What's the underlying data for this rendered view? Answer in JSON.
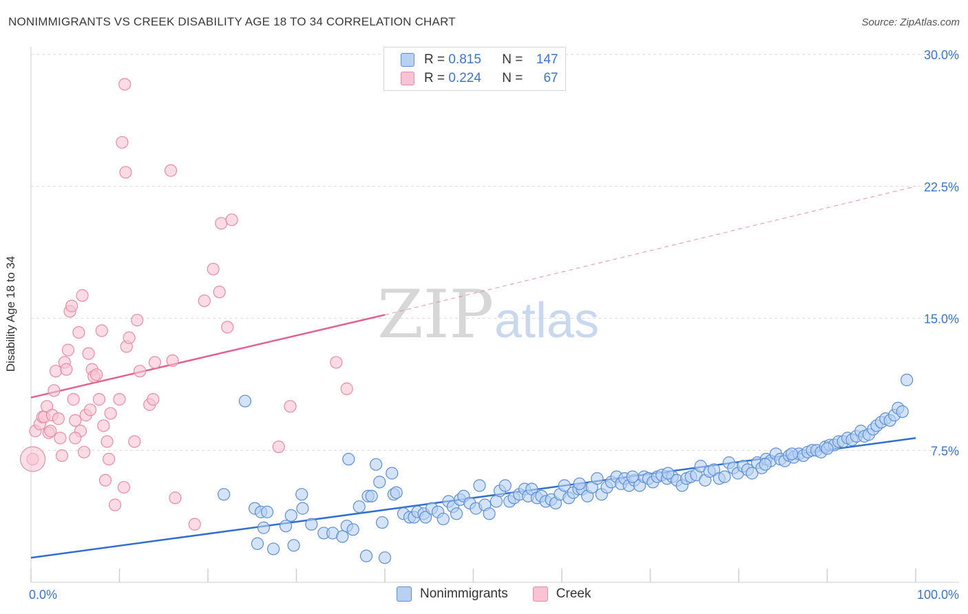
{
  "title": "NONIMMIGRANTS VS CREEK DISABILITY AGE 18 TO 34 CORRELATION CHART",
  "source": "Source: ZipAtlas.com",
  "watermark": {
    "zip": "ZIP",
    "atlas": "atlas"
  },
  "legend_top": [
    {
      "r_label": "R =",
      "r_value": "0.815",
      "n_label": "N =",
      "n_value": "147"
    },
    {
      "r_label": "R =",
      "r_value": "0.224",
      "n_label": "N =",
      "n_value": "67"
    }
  ],
  "colors": {
    "blue_fill": "#b8d0f2",
    "blue_stroke": "#5b8fd6",
    "blue_line": "#2f6fd0",
    "pink_fill": "#f8c4d3",
    "pink_stroke": "#ea8aa6",
    "pink_line": "#e3628d",
    "tick_text": "#3b74c9",
    "grid": "#d9d9d9"
  },
  "chart_data": {
    "type": "scatter",
    "xlabel": "",
    "ylabel": "Disability Age 18 to 34",
    "xlim": [
      0,
      100
    ],
    "ylim": [
      0,
      30
    ],
    "x_tick_labels": [
      "0.0%",
      "100.0%"
    ],
    "y_ticks": [
      7.5,
      15.0,
      22.5,
      30.0
    ],
    "y_tick_labels": [
      "7.5%",
      "15.0%",
      "22.5%",
      "30.0%"
    ],
    "grid": "horizontal dashed",
    "legend_position": "bottom-center",
    "series": [
      {
        "name": "Nonimmigrants",
        "color": "#5b8fd6",
        "trend": {
          "x": [
            0,
            100
          ],
          "y": [
            1.4,
            8.2
          ],
          "extended_to": null
        },
        "points": [
          [
            21.8,
            5.0
          ],
          [
            24.2,
            10.3
          ],
          [
            25.3,
            4.2
          ],
          [
            25.6,
            2.2
          ],
          [
            26.0,
            4.0
          ],
          [
            26.3,
            3.1
          ],
          [
            26.7,
            4.0
          ],
          [
            27.4,
            1.9
          ],
          [
            28.8,
            3.2
          ],
          [
            29.4,
            3.8
          ],
          [
            29.7,
            2.1
          ],
          [
            30.6,
            5.0
          ],
          [
            30.7,
            4.2
          ],
          [
            31.7,
            3.3
          ],
          [
            33.1,
            2.8
          ],
          [
            34.1,
            2.8
          ],
          [
            35.2,
            2.6
          ],
          [
            35.7,
            3.2
          ],
          [
            36.4,
            3.0
          ],
          [
            35.9,
            7.0
          ],
          [
            37.1,
            4.3
          ],
          [
            37.9,
            1.5
          ],
          [
            38.1,
            4.9
          ],
          [
            38.5,
            4.9
          ],
          [
            39.0,
            6.7
          ],
          [
            39.4,
            5.7
          ],
          [
            39.7,
            3.4
          ],
          [
            40.0,
            1.4
          ],
          [
            40.8,
            6.2
          ],
          [
            41.0,
            5.0
          ],
          [
            41.3,
            5.1
          ],
          [
            42.1,
            3.9
          ],
          [
            42.8,
            3.7
          ],
          [
            43.3,
            3.7
          ],
          [
            43.7,
            4.0
          ],
          [
            44.4,
            3.9
          ],
          [
            44.6,
            3.7
          ],
          [
            45.3,
            4.2
          ],
          [
            46.0,
            4.0
          ],
          [
            46.6,
            3.6
          ],
          [
            47.2,
            4.6
          ],
          [
            47.7,
            4.3
          ],
          [
            48.1,
            3.9
          ],
          [
            48.5,
            4.7
          ],
          [
            48.9,
            4.9
          ],
          [
            49.6,
            4.5
          ],
          [
            50.3,
            4.2
          ],
          [
            50.7,
            5.5
          ],
          [
            51.3,
            4.4
          ],
          [
            51.8,
            3.9
          ],
          [
            52.6,
            4.6
          ],
          [
            53.0,
            5.2
          ],
          [
            53.6,
            5.5
          ],
          [
            54.1,
            4.6
          ],
          [
            54.6,
            4.8
          ],
          [
            55.2,
            5.0
          ],
          [
            55.8,
            5.3
          ],
          [
            56.2,
            4.9
          ],
          [
            56.6,
            5.3
          ],
          [
            57.2,
            4.8
          ],
          [
            57.7,
            4.9
          ],
          [
            58.2,
            4.6
          ],
          [
            58.8,
            4.7
          ],
          [
            59.3,
            4.5
          ],
          [
            59.8,
            5.0
          ],
          [
            60.3,
            5.5
          ],
          [
            60.8,
            4.8
          ],
          [
            61.3,
            5.1
          ],
          [
            61.9,
            5.3
          ],
          [
            62.3,
            5.3
          ],
          [
            62.9,
            4.9
          ],
          [
            63.4,
            5.4
          ],
          [
            64.0,
            5.9
          ],
          [
            64.5,
            5.0
          ],
          [
            65.1,
            5.4
          ],
          [
            65.6,
            5.7
          ],
          [
            66.2,
            6.0
          ],
          [
            66.7,
            5.6
          ],
          [
            67.1,
            5.9
          ],
          [
            67.6,
            5.5
          ],
          [
            68.2,
            5.8
          ],
          [
            68.8,
            5.5
          ],
          [
            69.3,
            6.0
          ],
          [
            69.8,
            5.9
          ],
          [
            70.3,
            5.7
          ],
          [
            70.8,
            6.0
          ],
          [
            71.3,
            6.1
          ],
          [
            71.9,
            5.9
          ],
          [
            72.5,
            6.0
          ],
          [
            73.0,
            5.8
          ],
          [
            73.6,
            5.5
          ],
          [
            74.1,
            5.9
          ],
          [
            74.6,
            6.0
          ],
          [
            75.2,
            6.1
          ],
          [
            75.7,
            6.6
          ],
          [
            76.2,
            5.8
          ],
          [
            76.7,
            6.3
          ],
          [
            77.2,
            6.4
          ],
          [
            77.8,
            5.9
          ],
          [
            78.4,
            6.0
          ],
          [
            78.9,
            6.8
          ],
          [
            79.4,
            6.5
          ],
          [
            79.9,
            6.2
          ],
          [
            80.5,
            6.6
          ],
          [
            81.0,
            6.4
          ],
          [
            81.5,
            6.2
          ],
          [
            82.1,
            6.8
          ],
          [
            82.6,
            6.5
          ],
          [
            83.1,
            7.0
          ],
          [
            83.6,
            6.9
          ],
          [
            84.2,
            7.3
          ],
          [
            84.7,
            7.0
          ],
          [
            85.2,
            6.9
          ],
          [
            85.7,
            7.2
          ],
          [
            86.2,
            7.1
          ],
          [
            86.8,
            7.3
          ],
          [
            87.3,
            7.2
          ],
          [
            87.8,
            7.4
          ],
          [
            88.3,
            7.5
          ],
          [
            88.8,
            7.5
          ],
          [
            89.3,
            7.4
          ],
          [
            89.8,
            7.7
          ],
          [
            90.3,
            7.8
          ],
          [
            90.8,
            7.8
          ],
          [
            91.3,
            8.0
          ],
          [
            91.8,
            8.0
          ],
          [
            92.3,
            8.2
          ],
          [
            92.8,
            8.1
          ],
          [
            93.3,
            8.3
          ],
          [
            93.8,
            8.6
          ],
          [
            94.2,
            8.3
          ],
          [
            94.7,
            8.4
          ],
          [
            95.2,
            8.7
          ],
          [
            95.6,
            8.9
          ],
          [
            96.1,
            9.1
          ],
          [
            96.6,
            9.3
          ],
          [
            97.1,
            9.2
          ],
          [
            97.6,
            9.5
          ],
          [
            98.0,
            9.9
          ],
          [
            98.5,
            9.7
          ],
          [
            99.0,
            11.5
          ],
          [
            62.0,
            5.6
          ],
          [
            68.0,
            6.0
          ],
          [
            72.0,
            6.2
          ],
          [
            83.0,
            6.7
          ],
          [
            86.0,
            7.3
          ],
          [
            90.0,
            7.6
          ]
        ]
      },
      {
        "name": "Creek",
        "color": "#ea8aa6",
        "trend": {
          "x": [
            0,
            40
          ],
          "y": [
            10.5,
            15.2
          ],
          "extended_to": [
            100,
            22.5
          ]
        },
        "points": [
          [
            0.5,
            8.6
          ],
          [
            1.0,
            9.0
          ],
          [
            1.3,
            9.4
          ],
          [
            1.5,
            9.4
          ],
          [
            1.8,
            10.0
          ],
          [
            2.0,
            8.5
          ],
          [
            2.2,
            8.6
          ],
          [
            2.4,
            9.5
          ],
          [
            2.6,
            10.9
          ],
          [
            2.8,
            12.0
          ],
          [
            3.1,
            9.3
          ],
          [
            3.3,
            8.2
          ],
          [
            3.5,
            7.2
          ],
          [
            3.8,
            12.5
          ],
          [
            4.0,
            12.1
          ],
          [
            4.2,
            13.2
          ],
          [
            4.4,
            15.4
          ],
          [
            4.6,
            15.7
          ],
          [
            4.8,
            10.4
          ],
          [
            5.0,
            9.2
          ],
          [
            5.4,
            14.2
          ],
          [
            5.6,
            8.6
          ],
          [
            5.8,
            16.3
          ],
          [
            6.0,
            7.4
          ],
          [
            6.2,
            9.5
          ],
          [
            6.5,
            13.0
          ],
          [
            6.7,
            9.8
          ],
          [
            6.9,
            12.1
          ],
          [
            7.1,
            11.7
          ],
          [
            7.4,
            11.8
          ],
          [
            7.7,
            10.4
          ],
          [
            8.0,
            14.3
          ],
          [
            8.2,
            8.9
          ],
          [
            8.4,
            5.8
          ],
          [
            8.6,
            8.0
          ],
          [
            8.8,
            7.0
          ],
          [
            9.0,
            9.6
          ],
          [
            9.5,
            4.4
          ],
          [
            10.0,
            10.4
          ],
          [
            10.5,
            5.4
          ],
          [
            10.3,
            25.0
          ],
          [
            10.6,
            28.3
          ],
          [
            10.7,
            23.3
          ],
          [
            10.8,
            13.4
          ],
          [
            11.1,
            13.9
          ],
          [
            11.7,
            8.0
          ],
          [
            12.0,
            14.9
          ],
          [
            12.3,
            12.0
          ],
          [
            13.4,
            10.1
          ],
          [
            13.8,
            10.4
          ],
          [
            14.0,
            12.5
          ],
          [
            15.8,
            23.4
          ],
          [
            16.0,
            12.6
          ],
          [
            16.3,
            4.8
          ],
          [
            18.5,
            3.3
          ],
          [
            19.6,
            16.0
          ],
          [
            20.6,
            17.8
          ],
          [
            21.3,
            16.5
          ],
          [
            21.5,
            20.4
          ],
          [
            22.2,
            14.5
          ],
          [
            22.7,
            20.6
          ],
          [
            28.0,
            7.7
          ],
          [
            29.3,
            10.0
          ],
          [
            34.5,
            12.5
          ],
          [
            35.7,
            11.0
          ],
          [
            0.2,
            7.0
          ],
          [
            5.0,
            8.2
          ]
        ]
      }
    ]
  }
}
